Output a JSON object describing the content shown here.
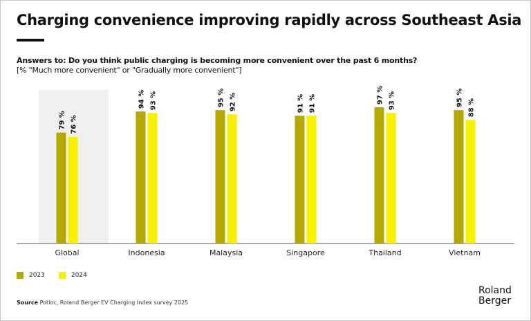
{
  "title": "Charging convenience improving rapidly across Southeast Asia",
  "question": "Answers to: Do you think public charging is becoming more convenient over the past 6 months?",
  "question_note": "[% \"Much more convenient\" or \"Gradually more convenient\"]",
  "source_label": "Source",
  "source_text": "Potloc, Roland Berger EV Charging Index survey 2025",
  "logo": "Roland Berger",
  "logo_lines": [
    "Roland",
    "Berger"
  ],
  "colors": {
    "s2023": "#b5a800",
    "s2024": "#f7f000",
    "highlight_bg": "#efefef",
    "axis": "#555555"
  },
  "chart_data": {
    "type": "bar",
    "title": "Charging convenience improving rapidly across Southeast Asia",
    "xlabel": "",
    "ylabel": "",
    "ylim": [
      0,
      100
    ],
    "grid": false,
    "legend_position": "bottom-left",
    "categories": [
      "Global",
      "Indonesia",
      "Malaysia",
      "Singapore",
      "Thailand",
      "Vietnam"
    ],
    "highlighted_category": "Global",
    "series": [
      {
        "name": "2023",
        "values": [
          79,
          94,
          95,
          91,
          97,
          95
        ]
      },
      {
        "name": "2024",
        "values": [
          76,
          93,
          92,
          91,
          93,
          88
        ]
      }
    ],
    "value_suffix": " %"
  }
}
